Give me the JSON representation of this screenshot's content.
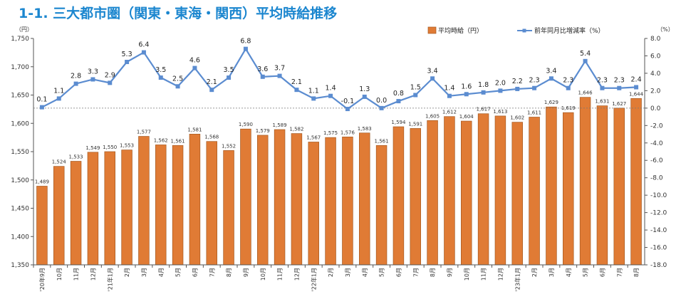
{
  "title": "1-1. 三大都市圏（関東・東海・関西）平均時給推移",
  "chart_data": {
    "type": "bar",
    "title": "1-1. 三大都市圏（関東・東海・関西）平均時給推移",
    "categories": [
      "'20年9月",
      "10月",
      "11月",
      "12月",
      "'21年1月",
      "2月",
      "3月",
      "4月",
      "5月",
      "6月",
      "7月",
      "8月",
      "9月",
      "10月",
      "11月",
      "12月",
      "'22年1月",
      "2月",
      "3月",
      "4月",
      "5月",
      "6月",
      "7月",
      "8月",
      "9月",
      "10月",
      "11月",
      "12月",
      "'23年1月",
      "2月",
      "3月",
      "4月",
      "5月",
      "6月",
      "7月",
      "8月"
    ],
    "series": [
      {
        "name": "平均時給（円）",
        "type": "bar",
        "axis": "left",
        "color": "#e07b35",
        "values": [
          1489,
          1524,
          1533,
          1549,
          1550,
          1553,
          1577,
          1562,
          1561,
          1581,
          1568,
          1552,
          1590,
          1579,
          1589,
          1582,
          1567,
          1575,
          1576,
          1583,
          1561,
          1594,
          1591,
          1605,
          1612,
          1604,
          1617,
          1613,
          1602,
          1611,
          1629,
          1619,
          1646,
          1631,
          1627,
          1644
        ]
      },
      {
        "name": "前年同月比増減率（%）",
        "type": "line",
        "axis": "right",
        "color": "#5b8cd0",
        "values": [
          0.1,
          1.1,
          2.8,
          3.3,
          2.9,
          5.3,
          6.4,
          3.5,
          2.5,
          4.6,
          2.1,
          3.5,
          6.8,
          3.6,
          3.7,
          2.1,
          1.1,
          1.4,
          -0.1,
          1.3,
          0.0,
          0.8,
          1.5,
          3.4,
          1.4,
          1.6,
          1.8,
          2.0,
          2.2,
          2.3,
          3.4,
          2.3,
          5.4,
          2.3,
          2.3,
          2.4
        ],
        "labels": [
          "0.1",
          "1.1",
          "2.8",
          "3.3",
          "2.9",
          "5.3",
          "6.4",
          "3.5",
          "2.5",
          "4.6",
          "2.1",
          "3.5",
          "6.8",
          "3.6",
          "3.7",
          "2.1",
          "1.1",
          "1.4",
          "-0.1",
          "1.3",
          "0.0",
          "0.8",
          "1.5",
          "3.4",
          "1.4",
          "1.6",
          "1.8",
          "2.0",
          "2.2",
          "2.3",
          "3.4",
          "2.3",
          "5.4",
          "2.3",
          "2.3",
          "2.4"
        ]
      }
    ],
    "left_axis": {
      "unit_label": "（円）",
      "ylim": [
        1350,
        1750
      ],
      "ticks": [
        "1,350",
        "1,400",
        "1,450",
        "1,500",
        "1,550",
        "1,600",
        "1,650",
        "1,700",
        "1,750"
      ]
    },
    "right_axis": {
      "unit_label": "（%）",
      "ylim": [
        -18,
        8
      ],
      "ticks": [
        "-18.0",
        "-16.0",
        "-14.0",
        "-12.0",
        "-10.0",
        "-8.0",
        "-6.0",
        "-4.0",
        "-2.0",
        "0.0",
        "2.0",
        "4.0",
        "6.0",
        "8.0"
      ]
    },
    "zero_reference_line": true,
    "grid": false,
    "legend_position": "top-right"
  },
  "colors": {
    "title": "#1b86cf",
    "bar": "#e07b35",
    "bar_border": "#a55a22",
    "line": "#5b8cd0",
    "axis": "#555555"
  }
}
